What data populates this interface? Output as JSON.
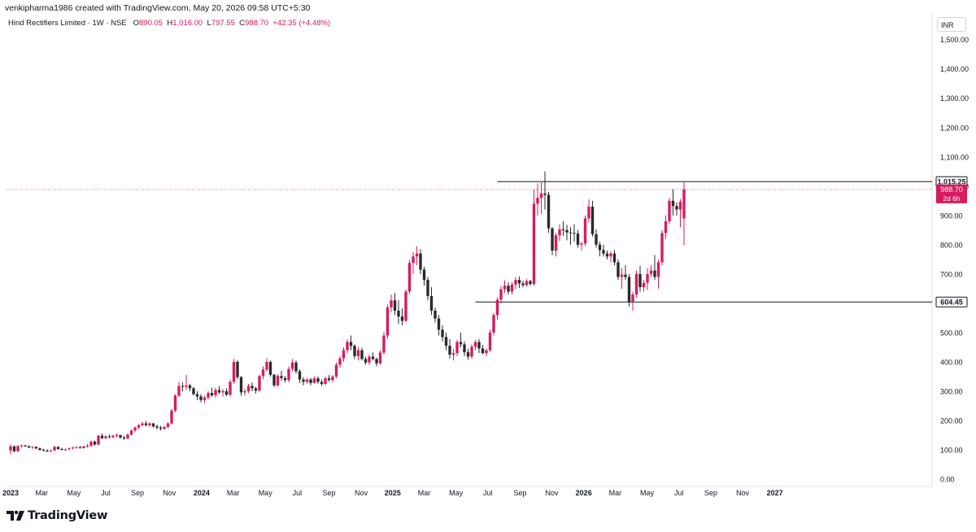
{
  "header": {
    "credit": "venkipharma1986 created with TradingView.com, May 20, 2026 09:58 UTC+5:30"
  },
  "legend": {
    "symbol": "Hind Rectifiers Limited · 1W · NSE",
    "open_label": "O",
    "open": "890.05",
    "high_label": "H",
    "high": "1,016.00",
    "low_label": "L",
    "low": "797.55",
    "close_label": "C",
    "close": "988.70",
    "change": "+42.35 (+4.48%)"
  },
  "currency": "INR",
  "brand": {
    "name": "TradingView"
  },
  "colors": {
    "up": "#d81b60",
    "down": "#2a2a2a",
    "line": "#131722",
    "price_dotted": "#e57373",
    "grid": "#f0f3fa"
  },
  "chart_data": {
    "type": "candlestick",
    "interval": "1W",
    "y_axis": {
      "min": 0,
      "max": 1550,
      "ticks": [
        0,
        100,
        200,
        300,
        400,
        500,
        600,
        700,
        800,
        900,
        1000,
        1100,
        1200,
        1300,
        1400,
        1500
      ],
      "tick_labels": [
        "0.00",
        "100.00",
        "200.00",
        "300.00",
        "400.00",
        "500.00",
        "600.00",
        "700.00",
        "800.00",
        "900.00",
        "1,000.00",
        "1,100.00",
        "1,200.00",
        "1,300.00",
        "1,400.00",
        "1,500.00"
      ],
      "side": "right"
    },
    "x_axis": {
      "labels": [
        {
          "label": "2023",
          "bold": true,
          "index": 0
        },
        {
          "label": "Mar",
          "bold": false,
          "index": 8.5
        },
        {
          "label": "May",
          "bold": false,
          "index": 17.3
        },
        {
          "label": "Jul",
          "bold": false,
          "index": 26
        },
        {
          "label": "Sep",
          "bold": false,
          "index": 34.7
        },
        {
          "label": "Nov",
          "bold": false,
          "index": 43.4
        },
        {
          "label": "2024",
          "bold": true,
          "index": 52.2
        },
        {
          "label": "Mar",
          "bold": false,
          "index": 60.8
        },
        {
          "label": "May",
          "bold": false,
          "index": 69.6
        },
        {
          "label": "Jul",
          "bold": false,
          "index": 78.3
        },
        {
          "label": "Sep",
          "bold": false,
          "index": 87
        },
        {
          "label": "Nov",
          "bold": false,
          "index": 95.8
        },
        {
          "label": "2025",
          "bold": true,
          "index": 104.4
        },
        {
          "label": "Mar",
          "bold": false,
          "index": 113
        },
        {
          "label": "May",
          "bold": false,
          "index": 121.7
        },
        {
          "label": "Jul",
          "bold": false,
          "index": 130.4
        },
        {
          "label": "Sep",
          "bold": false,
          "index": 139.2
        },
        {
          "label": "Nov",
          "bold": false,
          "index": 147.9
        },
        {
          "label": "2026",
          "bold": true,
          "index": 156.6
        },
        {
          "label": "Mar",
          "bold": false,
          "index": 165.2
        },
        {
          "label": "May",
          "bold": false,
          "index": 173.9
        },
        {
          "label": "Jul",
          "bold": false,
          "index": 182.6
        },
        {
          "label": "Sep",
          "bold": false,
          "index": 191.3
        },
        {
          "label": "Nov",
          "bold": false,
          "index": 200
        },
        {
          "label": "2027",
          "bold": true,
          "index": 208.8
        }
      ]
    },
    "horizontal_lines": [
      {
        "price": 1015.25,
        "label": "1,015.25",
        "start_index": 133
      },
      {
        "price": 604.45,
        "label": "604.45",
        "start_index": 127
      }
    ],
    "last_price": {
      "price": 988.7,
      "label": "988.70",
      "countdown": "2d 6h"
    },
    "candles": [
      [
        98,
        118,
        85,
        112
      ],
      [
        112,
        115,
        92,
        95
      ],
      [
        95,
        116,
        93,
        113
      ],
      [
        113,
        118,
        108,
        115
      ],
      [
        115,
        117,
        110,
        112
      ],
      [
        112,
        115,
        106,
        108
      ],
      [
        108,
        112,
        103,
        110
      ],
      [
        110,
        112,
        102,
        105
      ],
      [
        105,
        108,
        97,
        100
      ],
      [
        100,
        104,
        95,
        98
      ],
      [
        98,
        102,
        92,
        95
      ],
      [
        95,
        100,
        93,
        98
      ],
      [
        98,
        114,
        96,
        110
      ],
      [
        110,
        112,
        100,
        103
      ],
      [
        103,
        107,
        98,
        100
      ],
      [
        100,
        104,
        96,
        102
      ],
      [
        102,
        108,
        99,
        105
      ],
      [
        105,
        110,
        102,
        108
      ],
      [
        108,
        112,
        104,
        109
      ],
      [
        109,
        113,
        104,
        106
      ],
      [
        106,
        114,
        104,
        112
      ],
      [
        112,
        120,
        108,
        114
      ],
      [
        114,
        132,
        110,
        128
      ],
      [
        128,
        132,
        114,
        118
      ],
      [
        118,
        152,
        116,
        148
      ],
      [
        148,
        156,
        136,
        140
      ],
      [
        140,
        150,
        136,
        146
      ],
      [
        146,
        152,
        140,
        143
      ],
      [
        143,
        152,
        140,
        148
      ],
      [
        148,
        156,
        142,
        150
      ],
      [
        150,
        152,
        138,
        142
      ],
      [
        142,
        148,
        134,
        139
      ],
      [
        139,
        155,
        136,
        152
      ],
      [
        152,
        170,
        148,
        166
      ],
      [
        166,
        180,
        160,
        176
      ],
      [
        176,
        188,
        170,
        184
      ],
      [
        184,
        196,
        180,
        190
      ],
      [
        190,
        198,
        180,
        184
      ],
      [
        184,
        194,
        178,
        190
      ],
      [
        190,
        192,
        176,
        180
      ],
      [
        180,
        186,
        170,
        176
      ],
      [
        176,
        182,
        166,
        172
      ],
      [
        172,
        182,
        168,
        178
      ],
      [
        178,
        194,
        174,
        190
      ],
      [
        190,
        240,
        186,
        234
      ],
      [
        234,
        290,
        228,
        285
      ],
      [
        285,
        332,
        280,
        318
      ],
      [
        318,
        330,
        300,
        315
      ],
      [
        315,
        355,
        304,
        320
      ],
      [
        320,
        325,
        300,
        310
      ],
      [
        310,
        315,
        285,
        290
      ],
      [
        290,
        300,
        270,
        282
      ],
      [
        282,
        290,
        262,
        270
      ],
      [
        270,
        285,
        260,
        278
      ],
      [
        278,
        300,
        272,
        294
      ],
      [
        294,
        312,
        280,
        286
      ],
      [
        286,
        312,
        278,
        304
      ],
      [
        304,
        318,
        290,
        296
      ],
      [
        296,
        308,
        282,
        300
      ],
      [
        300,
        310,
        284,
        288
      ],
      [
        288,
        340,
        282,
        332
      ],
      [
        332,
        410,
        325,
        400
      ],
      [
        400,
        406,
        340,
        348
      ],
      [
        348,
        352,
        285,
        296
      ],
      [
        296,
        308,
        285,
        300
      ],
      [
        300,
        325,
        294,
        318
      ],
      [
        318,
        330,
        300,
        310
      ],
      [
        310,
        315,
        292,
        302
      ],
      [
        302,
        356,
        298,
        352
      ],
      [
        352,
        385,
        340,
        374
      ],
      [
        374,
        412,
        368,
        400
      ],
      [
        400,
        405,
        350,
        356
      ],
      [
        356,
        360,
        314,
        320
      ],
      [
        320,
        358,
        316,
        352
      ],
      [
        352,
        370,
        335,
        345
      ],
      [
        345,
        352,
        330,
        338
      ],
      [
        338,
        385,
        330,
        376
      ],
      [
        376,
        410,
        368,
        398
      ],
      [
        398,
        405,
        360,
        368
      ],
      [
        368,
        375,
        328,
        340
      ],
      [
        340,
        348,
        320,
        332
      ],
      [
        332,
        345,
        326,
        340
      ],
      [
        340,
        345,
        320,
        328
      ],
      [
        328,
        350,
        326,
        344
      ],
      [
        344,
        350,
        325,
        332
      ],
      [
        332,
        340,
        318,
        325
      ],
      [
        325,
        350,
        320,
        344
      ],
      [
        344,
        355,
        332,
        338
      ],
      [
        338,
        355,
        330,
        350
      ],
      [
        350,
        398,
        345,
        390
      ],
      [
        390,
        420,
        380,
        412
      ],
      [
        412,
        450,
        400,
        440
      ],
      [
        440,
        478,
        430,
        468
      ],
      [
        468,
        490,
        440,
        455
      ],
      [
        455,
        460,
        410,
        420
      ],
      [
        420,
        450,
        405,
        440
      ],
      [
        440,
        448,
        405,
        410
      ],
      [
        410,
        418,
        390,
        398
      ],
      [
        398,
        425,
        390,
        418
      ],
      [
        418,
        432,
        405,
        410
      ],
      [
        410,
        415,
        385,
        395
      ],
      [
        395,
        440,
        390,
        432
      ],
      [
        432,
        502,
        425,
        490
      ],
      [
        490,
        596,
        480,
        586
      ],
      [
        586,
        630,
        570,
        610
      ],
      [
        610,
        635,
        560,
        575
      ],
      [
        575,
        610,
        530,
        555
      ],
      [
        555,
        582,
        525,
        540
      ],
      [
        540,
        648,
        535,
        640
      ],
      [
        640,
        748,
        632,
        738
      ],
      [
        738,
        775,
        700,
        760
      ],
      [
        760,
        795,
        730,
        770
      ],
      [
        770,
        785,
        700,
        715
      ],
      [
        715,
        725,
        660,
        680
      ],
      [
        680,
        690,
        610,
        625
      ],
      [
        625,
        655,
        560,
        575
      ],
      [
        575,
        585,
        535,
        548
      ],
      [
        548,
        560,
        490,
        510
      ],
      [
        510,
        525,
        470,
        485
      ],
      [
        485,
        500,
        440,
        455
      ],
      [
        455,
        478,
        412,
        425
      ],
      [
        425,
        445,
        405,
        430
      ],
      [
        430,
        475,
        420,
        468
      ],
      [
        468,
        500,
        450,
        460
      ],
      [
        460,
        470,
        420,
        433
      ],
      [
        433,
        445,
        408,
        418
      ],
      [
        418,
        460,
        412,
        452
      ],
      [
        452,
        475,
        440,
        468
      ],
      [
        468,
        478,
        430,
        446
      ],
      [
        446,
        458,
        426,
        430
      ],
      [
        430,
        445,
        420,
        440
      ],
      [
        440,
        510,
        435,
        500
      ],
      [
        500,
        568,
        490,
        560
      ],
      [
        560,
        620,
        545,
        612
      ],
      [
        612,
        660,
        600,
        648
      ],
      [
        648,
        678,
        635,
        660
      ],
      [
        660,
        672,
        630,
        640
      ],
      [
        640,
        672,
        630,
        664
      ],
      [
        664,
        690,
        648,
        680
      ],
      [
        680,
        692,
        652,
        668
      ],
      [
        668,
        678,
        655,
        662
      ],
      [
        662,
        682,
        658,
        676
      ],
      [
        676,
        680,
        660,
        666
      ],
      [
        666,
        990,
        660,
        940
      ],
      [
        940,
        1010,
        900,
        960
      ],
      [
        960,
        1016,
        905,
        975
      ],
      [
        975,
        1050,
        920,
        970
      ],
      [
        970,
        980,
        840,
        856
      ],
      [
        856,
        860,
        765,
        780
      ],
      [
        780,
        840,
        760,
        832
      ],
      [
        832,
        870,
        812,
        852
      ],
      [
        852,
        880,
        830,
        850
      ],
      [
        850,
        868,
        815,
        842
      ],
      [
        842,
        860,
        800,
        840
      ],
      [
        840,
        870,
        810,
        838
      ],
      [
        838,
        850,
        790,
        800
      ],
      [
        800,
        810,
        780,
        804
      ],
      [
        804,
        900,
        795,
        890
      ],
      [
        890,
        955,
        876,
        930
      ],
      [
        930,
        950,
        828,
        836
      ],
      [
        836,
        852,
        790,
        800
      ],
      [
        800,
        810,
        760,
        782
      ],
      [
        782,
        800,
        760,
        770
      ],
      [
        770,
        780,
        750,
        760
      ],
      [
        760,
        778,
        740,
        770
      ],
      [
        770,
        782,
        730,
        740
      ],
      [
        740,
        750,
        680,
        690
      ],
      [
        690,
        720,
        650,
        698
      ],
      [
        698,
        730,
        680,
        690
      ],
      [
        690,
        700,
        590,
        605
      ],
      [
        605,
        640,
        575,
        630
      ],
      [
        630,
        712,
        620,
        700
      ],
      [
        700,
        728,
        640,
        655
      ],
      [
        655,
        680,
        640,
        670
      ],
      [
        670,
        720,
        645,
        700
      ],
      [
        700,
        730,
        690,
        712
      ],
      [
        712,
        765,
        680,
        690
      ],
      [
        690,
        750,
        650,
        740
      ],
      [
        740,
        850,
        730,
        840
      ],
      [
        840,
        900,
        820,
        880
      ],
      [
        880,
        960,
        870,
        950
      ],
      [
        950,
        990,
        900,
        932
      ],
      [
        932,
        945,
        900,
        920
      ],
      [
        920,
        955,
        860,
        946
      ],
      [
        890,
        1016,
        797.55,
        988.7
      ]
    ]
  }
}
